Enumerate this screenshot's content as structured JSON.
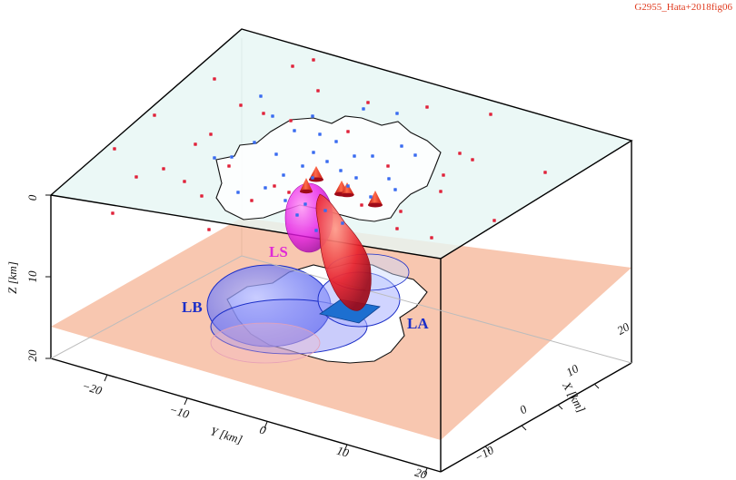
{
  "figure_id": "G2955_Hata+2018fig06",
  "axes": {
    "z_label": "Z [km]",
    "z_ticks": [
      "0",
      "10",
      "20"
    ],
    "y_label": "Y [km]",
    "y_ticks": [
      "−20",
      "−10",
      "0",
      "10",
      "20"
    ],
    "x_label": "X [km]",
    "x_ticks": [
      "−10",
      "0",
      "10",
      "20"
    ]
  },
  "labels": {
    "ls": "LS",
    "lb": "LB",
    "la": "LA"
  },
  "colors": {
    "top_plane": "#e6f6f4",
    "depth_plane": "#f6b79a",
    "label_ls": "#e02ad6",
    "label_blue": "#1b2ec8",
    "station_red": "#e0233a",
    "station_blue": "#3a6cf0",
    "volcano_cone": "#e81810",
    "reservoir_blue": "#6b72f2",
    "reservoir_magenta": "#e81ae6",
    "conduit_red": "#e8202a",
    "sill_blue": "#1d6fd0"
  }
}
